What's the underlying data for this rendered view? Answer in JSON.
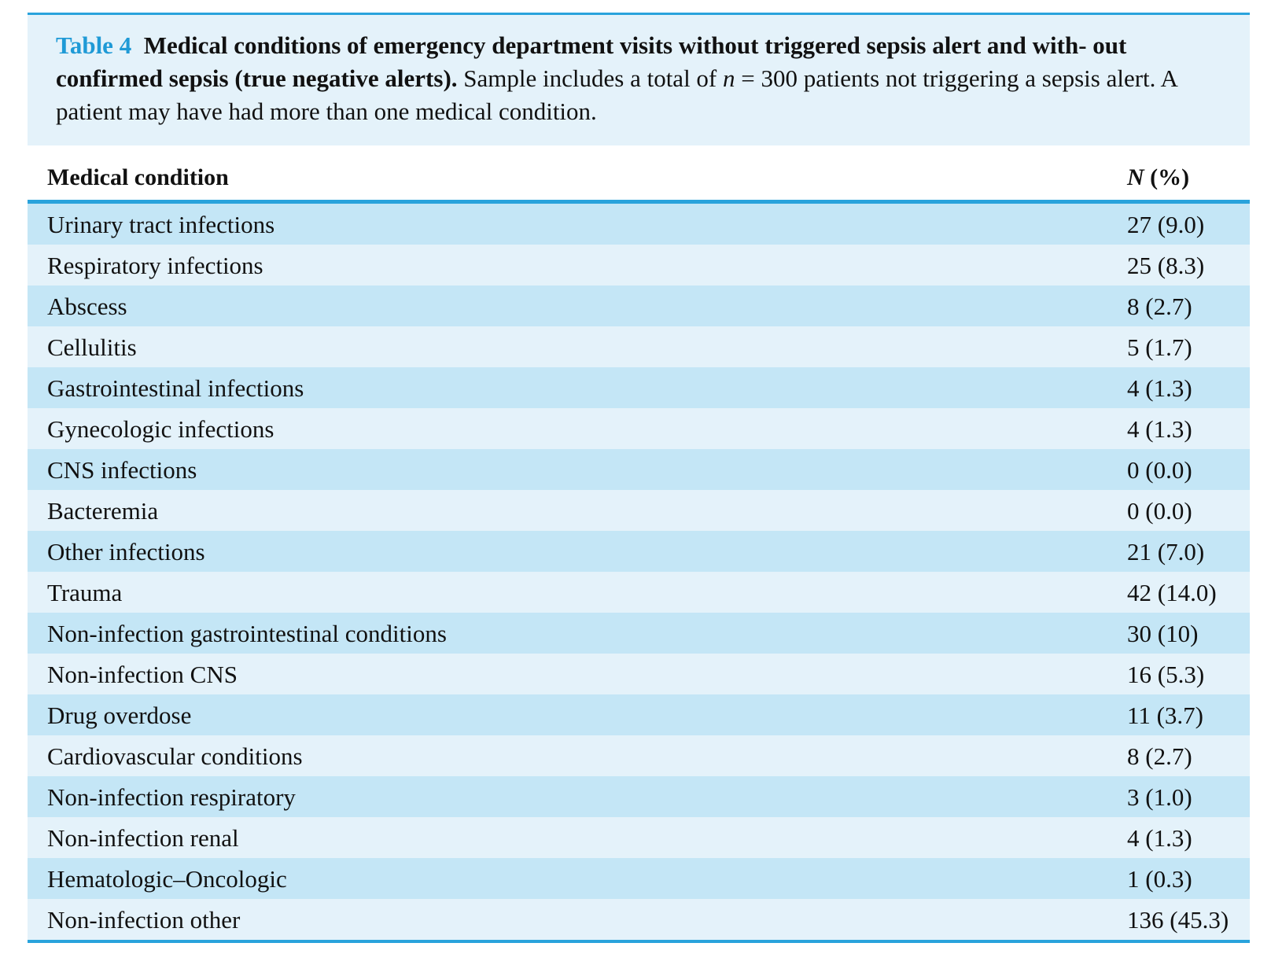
{
  "caption": {
    "label": "Table 4",
    "title": "Medical conditions of emergency department visits without triggered sepsis alert and with- out confirmed sepsis (true negative alerts).",
    "text_before_n": " Sample includes a total of ",
    "n_symbol": "n",
    "text_after_n": " = 300 patients not triggering a sepsis alert. A patient may have had more than one medical condition."
  },
  "table": {
    "headers": {
      "condition": "Medical condition",
      "n_symbol": "N",
      "n_suffix": " (%)"
    },
    "rows": [
      {
        "condition": "Urinary tract infections",
        "value": "27 (9.0)"
      },
      {
        "condition": "Respiratory infections",
        "value": "25 (8.3)"
      },
      {
        "condition": "Abscess",
        "value": "8 (2.7)"
      },
      {
        "condition": "Cellulitis",
        "value": "5 (1.7)"
      },
      {
        "condition": "Gastrointestinal infections",
        "value": "4 (1.3)"
      },
      {
        "condition": "Gynecologic infections",
        "value": "4 (1.3)"
      },
      {
        "condition": "CNS infections",
        "value": "0 (0.0)"
      },
      {
        "condition": "Bacteremia",
        "value": "0 (0.0)"
      },
      {
        "condition": "Other infections",
        "value": "21 (7.0)"
      },
      {
        "condition": "Trauma",
        "value": "42 (14.0)"
      },
      {
        "condition": "Non-infection gastrointestinal conditions",
        "value": "30 (10)"
      },
      {
        "condition": "Non-infection CNS",
        "value": "16 (5.3)"
      },
      {
        "condition": "Drug overdose",
        "value": "11 (3.7)"
      },
      {
        "condition": "Cardiovascular conditions",
        "value": "8 (2.7)"
      },
      {
        "condition": "Non-infection respiratory",
        "value": "3 (1.0)"
      },
      {
        "condition": "Non-infection renal",
        "value": "4 (1.3)"
      },
      {
        "condition": "Hematologic–Oncologic",
        "value": "1 (0.3)"
      },
      {
        "condition": "Non-infection other",
        "value": "136 (45.3)"
      }
    ]
  },
  "colors": {
    "accent": "#29a3dc",
    "label": "#1f9ad6",
    "row_dark": "#c4e6f6",
    "row_light": "#e4f2fa"
  }
}
